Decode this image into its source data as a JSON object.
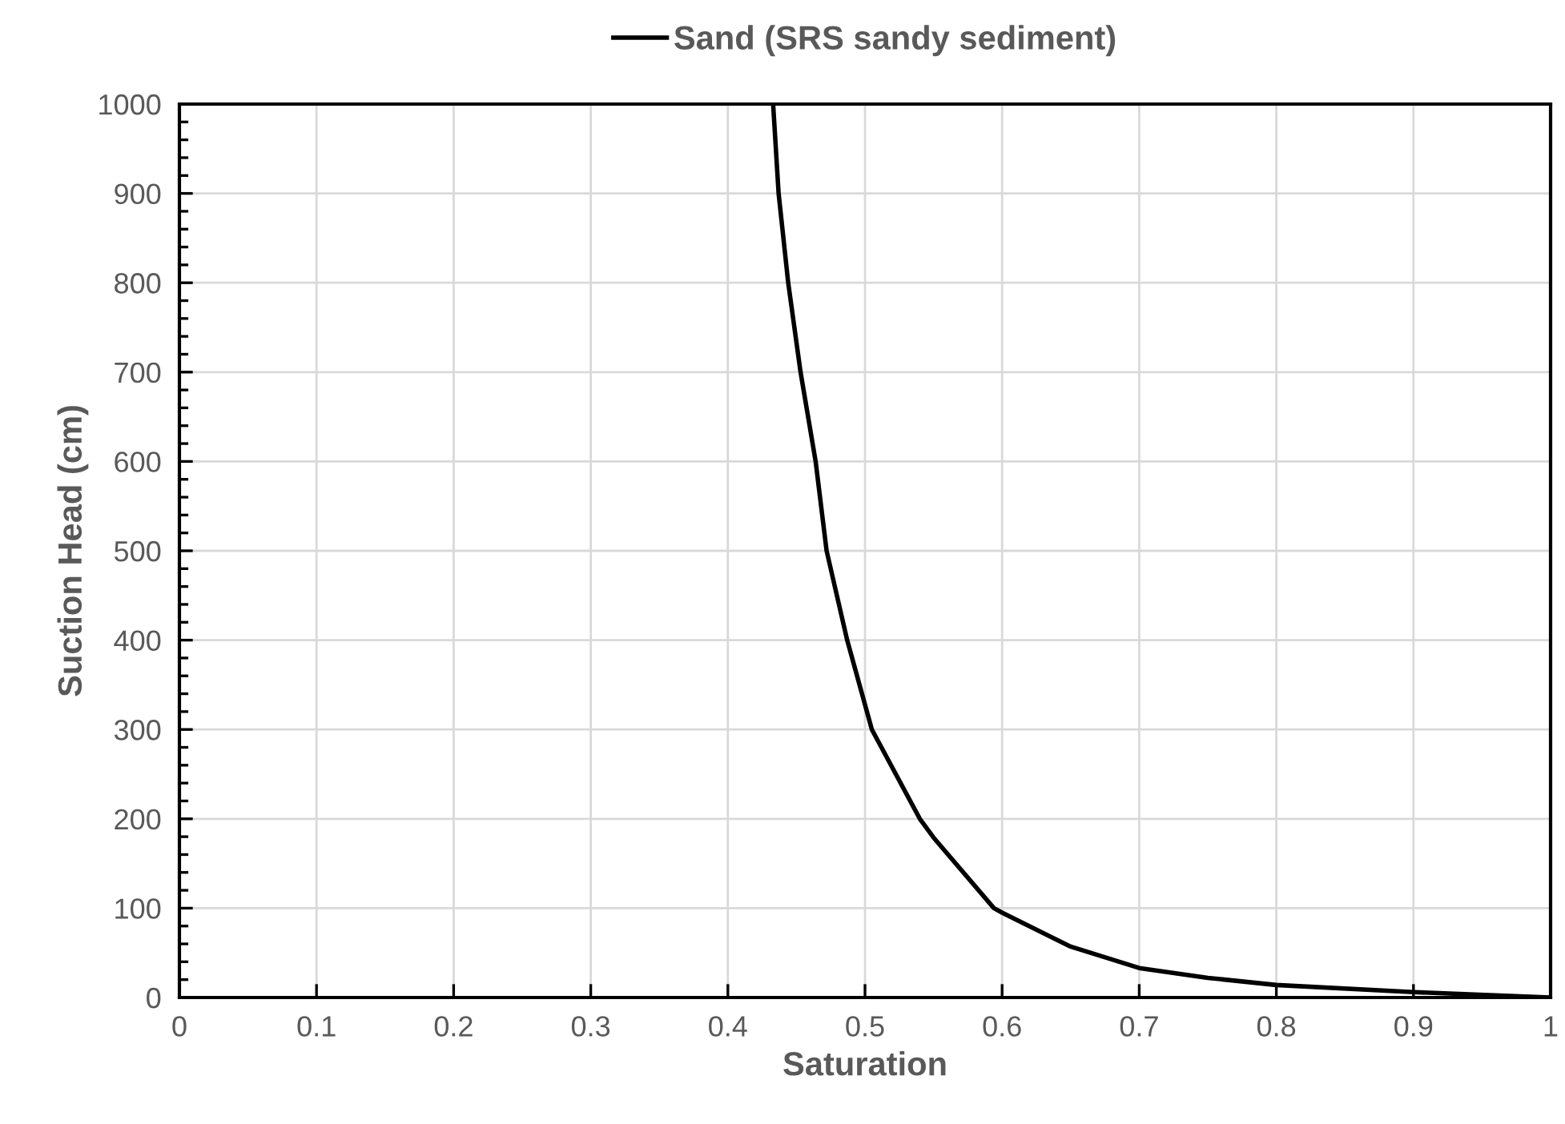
{
  "chart_data": {
    "type": "line",
    "xlabel": "Saturation",
    "ylabel": "Suction Head (cm)",
    "series": [
      {
        "name": "Sand (SRS sandy sediment)",
        "color": "#000000",
        "x": [
          0.433,
          0.437,
          0.444,
          0.453,
          0.464,
          0.472,
          0.487,
          0.505,
          0.54,
          0.55,
          0.594,
          0.6,
          0.65,
          0.7,
          0.75,
          0.8,
          0.9,
          1.0
        ],
        "values": [
          1000,
          900,
          800,
          700,
          600,
          500,
          400,
          300,
          200,
          179,
          100,
          95,
          57,
          33,
          22,
          14,
          6,
          0
        ]
      }
    ],
    "xlim": [
      0,
      1
    ],
    "xticks": [
      0,
      0.1,
      0.2,
      0.3,
      0.4,
      0.5,
      0.6,
      0.7,
      0.8,
      0.9,
      1
    ],
    "ylim": [
      0,
      1000
    ],
    "yticks": [
      0,
      100,
      200,
      300,
      400,
      500,
      600,
      700,
      800,
      900,
      1000
    ],
    "grid": true,
    "legend": "top",
    "marker": "none",
    "line_style": "solid"
  }
}
